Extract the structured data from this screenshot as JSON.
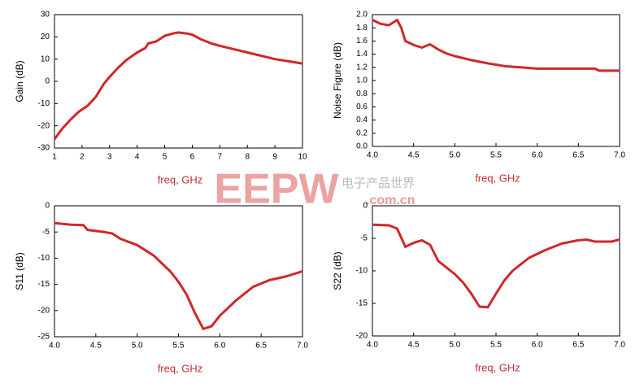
{
  "chart_data": [
    {
      "type": "line",
      "ylabel": "Gain (dB)",
      "xlabel": "freq, GHz",
      "color": "#d02828",
      "x": [
        1,
        1.3,
        1.6,
        1.9,
        2.2,
        2.5,
        2.8,
        3,
        3.3,
        3.6,
        4,
        4.3,
        4.4,
        4.7,
        5,
        5.3,
        5.5,
        5.8,
        6,
        6.3,
        6.7,
        7,
        7.5,
        8,
        8.5,
        9,
        9.5,
        10
      ],
      "values": [
        -26,
        -21,
        -17,
        -13.5,
        -11,
        -7,
        -1,
        2,
        6,
        9.5,
        13,
        15,
        17,
        18,
        20.5,
        21.5,
        22,
        21.5,
        21,
        19,
        17,
        16,
        14.5,
        13,
        11.5,
        10,
        9,
        8
      ],
      "xlim": [
        1,
        10
      ],
      "xticks": [
        1,
        2,
        3,
        4,
        5,
        6,
        7,
        8,
        9,
        10
      ],
      "ylim": [
        -30,
        30
      ],
      "yticks": [
        -30,
        -20,
        -10,
        0,
        10,
        20,
        30
      ]
    },
    {
      "type": "line",
      "ylabel": "Noise Figure (dB)",
      "xlabel": "freq, GHz",
      "color": "#d02828",
      "x": [
        4.0,
        4.1,
        4.2,
        4.3,
        4.35,
        4.4,
        4.5,
        4.6,
        4.7,
        4.8,
        4.9,
        5,
        5.2,
        5.4,
        5.6,
        5.8,
        6,
        6.5,
        6.7,
        6.75,
        7
      ],
      "values": [
        1.92,
        1.86,
        1.84,
        1.92,
        1.8,
        1.6,
        1.54,
        1.5,
        1.55,
        1.47,
        1.41,
        1.37,
        1.31,
        1.26,
        1.22,
        1.2,
        1.18,
        1.18,
        1.18,
        1.15,
        1.15
      ],
      "xlim": [
        4,
        7
      ],
      "xticks": [
        {
          "value": 4,
          "label": "4.0"
        },
        4.5,
        {
          "value": 5,
          "label": "5.0"
        },
        5.5,
        {
          "value": 6,
          "label": "6.0"
        },
        6.5,
        {
          "value": 7,
          "label": "7.0"
        }
      ],
      "ylim": [
        0,
        2
      ],
      "yticks": [
        {
          "value": 0,
          "label": "0.0"
        },
        0.2,
        0.4,
        0.6,
        0.8,
        {
          "value": 1,
          "label": "1.0"
        },
        1.2,
        1.4,
        1.6,
        1.8,
        {
          "value": 2,
          "label": "2.0"
        }
      ]
    },
    {
      "type": "line",
      "ylabel": "S11 (dB)",
      "xlabel": "freq, GHz",
      "color": "#d02828",
      "x": [
        4,
        4.2,
        4.35,
        4.4,
        4.6,
        4.7,
        4.8,
        5,
        5.2,
        5.4,
        5.5,
        5.6,
        5.7,
        5.8,
        5.9,
        6,
        6.2,
        6.4,
        6.6,
        6.8,
        7
      ],
      "values": [
        -3.3,
        -3.6,
        -3.7,
        -4.6,
        -5.0,
        -5.3,
        -6.3,
        -7.5,
        -9.5,
        -12.5,
        -14.5,
        -17,
        -20.5,
        -23.5,
        -23,
        -21,
        -18,
        -15.5,
        -14.2,
        -13.5,
        -12.5
      ],
      "xlim": [
        4,
        7
      ],
      "xticks": [
        {
          "value": 4,
          "label": "4.0"
        },
        4.5,
        {
          "value": 5,
          "label": "5.0"
        },
        5.5,
        {
          "value": 6,
          "label": "6.0"
        },
        6.5,
        {
          "value": 7,
          "label": "7.0"
        }
      ],
      "ylim": [
        -25,
        0
      ],
      "yticks": [
        -25,
        -20,
        -15,
        -10,
        -5,
        0
      ]
    },
    {
      "type": "line",
      "ylabel": "S22 (dB)",
      "xlabel": "freq, GHz",
      "color": "#d02828",
      "x": [
        4,
        4.2,
        4.3,
        4.4,
        4.5,
        4.6,
        4.7,
        4.8,
        5,
        5.1,
        5.2,
        5.3,
        5.4,
        5.5,
        5.6,
        5.7,
        5.9,
        6.1,
        6.3,
        6.5,
        6.6,
        6.7,
        6.9,
        7
      ],
      "values": [
        -2.9,
        -3.0,
        -3.5,
        -6.3,
        -5.7,
        -5.3,
        -6.0,
        -8.5,
        -10.5,
        -11.8,
        -13.5,
        -15.5,
        -15.6,
        -13.5,
        -11.5,
        -10,
        -8,
        -6.8,
        -5.8,
        -5.3,
        -5.2,
        -5.5,
        -5.5,
        -5.2
      ],
      "xlim": [
        4,
        7
      ],
      "xticks": [
        {
          "value": 4,
          "label": "4.0"
        },
        4.5,
        {
          "value": 5,
          "label": "5.0"
        },
        5.5,
        {
          "value": 6,
          "label": "6.0"
        },
        6.5,
        {
          "value": 7,
          "label": "7.0"
        }
      ],
      "ylim": [
        -20,
        0
      ],
      "yticks": [
        -20,
        -15,
        -10,
        -5,
        0
      ]
    }
  ],
  "watermark": {
    "logo": "EEPW",
    "text": "电子产品世界",
    "url": ".com.cn"
  }
}
